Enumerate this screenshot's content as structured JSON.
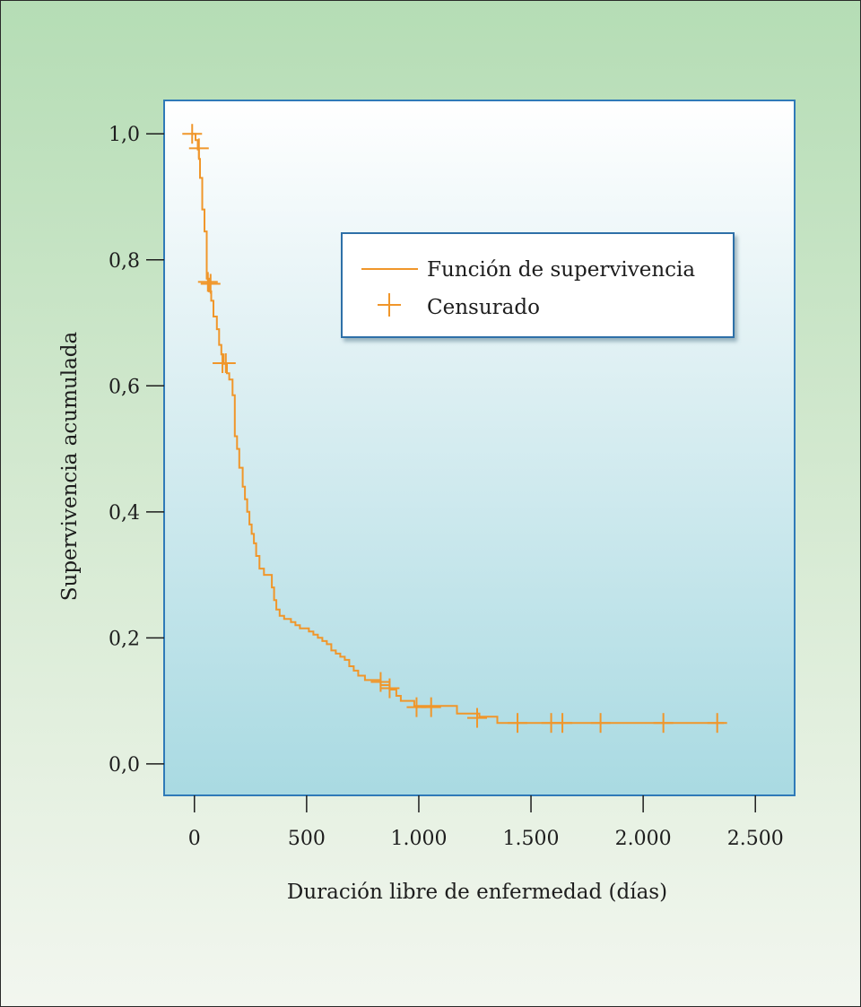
{
  "chart_data": {
    "type": "line",
    "xlabel": "Duración libre de enfermedad (días)",
    "ylabel": "Supervivencia acumulada",
    "xlim": [
      -135,
      2675
    ],
    "ylim": [
      -0.05,
      1.053
    ],
    "x_ticks": [
      0,
      500,
      1000,
      1500,
      2000,
      2500
    ],
    "x_tick_labels": [
      "0",
      "500",
      "1.000",
      "1.500",
      "2.000",
      "2.500"
    ],
    "y_ticks": [
      0,
      0.2,
      0.4,
      0.6,
      0.8,
      1.0
    ],
    "y_tick_labels": [
      "0,0",
      "0,2",
      "0,4",
      "0,6",
      "0,8",
      "1,0"
    ],
    "grid": false,
    "legend_position": "top-right",
    "colors": {
      "line": "#f0962a",
      "plot_border": "#2f7ab8",
      "legend_border": "#2f6fa8"
    },
    "series": [
      {
        "name": "Función de supervivencia",
        "style": "step",
        "points": [
          [
            -10,
            1.0
          ],
          [
            5,
            1.0
          ],
          [
            5,
            0.99
          ],
          [
            15,
            0.99
          ],
          [
            15,
            0.975
          ],
          [
            20,
            0.975
          ],
          [
            20,
            0.96
          ],
          [
            25,
            0.96
          ],
          [
            25,
            0.93
          ],
          [
            35,
            0.93
          ],
          [
            35,
            0.88
          ],
          [
            45,
            0.88
          ],
          [
            45,
            0.845
          ],
          [
            55,
            0.845
          ],
          [
            55,
            0.77
          ],
          [
            65,
            0.77
          ],
          [
            65,
            0.75
          ],
          [
            75,
            0.75
          ],
          [
            75,
            0.735
          ],
          [
            85,
            0.735
          ],
          [
            85,
            0.71
          ],
          [
            100,
            0.71
          ],
          [
            100,
            0.69
          ],
          [
            110,
            0.69
          ],
          [
            110,
            0.665
          ],
          [
            120,
            0.665
          ],
          [
            120,
            0.65
          ],
          [
            130,
            0.65
          ],
          [
            130,
            0.635
          ],
          [
            145,
            0.635
          ],
          [
            145,
            0.62
          ],
          [
            155,
            0.62
          ],
          [
            155,
            0.61
          ],
          [
            170,
            0.61
          ],
          [
            170,
            0.585
          ],
          [
            180,
            0.585
          ],
          [
            180,
            0.52
          ],
          [
            190,
            0.52
          ],
          [
            190,
            0.5
          ],
          [
            200,
            0.5
          ],
          [
            200,
            0.47
          ],
          [
            215,
            0.47
          ],
          [
            215,
            0.44
          ],
          [
            225,
            0.44
          ],
          [
            225,
            0.42
          ],
          [
            235,
            0.42
          ],
          [
            235,
            0.4
          ],
          [
            245,
            0.4
          ],
          [
            245,
            0.38
          ],
          [
            255,
            0.38
          ],
          [
            255,
            0.365
          ],
          [
            265,
            0.365
          ],
          [
            265,
            0.35
          ],
          [
            275,
            0.35
          ],
          [
            275,
            0.33
          ],
          [
            290,
            0.33
          ],
          [
            290,
            0.31
          ],
          [
            310,
            0.31
          ],
          [
            310,
            0.3
          ],
          [
            345,
            0.3
          ],
          [
            345,
            0.28
          ],
          [
            355,
            0.28
          ],
          [
            355,
            0.26
          ],
          [
            365,
            0.26
          ],
          [
            365,
            0.245
          ],
          [
            380,
            0.245
          ],
          [
            380,
            0.235
          ],
          [
            400,
            0.235
          ],
          [
            400,
            0.23
          ],
          [
            430,
            0.23
          ],
          [
            430,
            0.225
          ],
          [
            450,
            0.225
          ],
          [
            450,
            0.22
          ],
          [
            470,
            0.22
          ],
          [
            470,
            0.215
          ],
          [
            510,
            0.215
          ],
          [
            510,
            0.21
          ],
          [
            530,
            0.21
          ],
          [
            530,
            0.205
          ],
          [
            550,
            0.205
          ],
          [
            550,
            0.2
          ],
          [
            570,
            0.2
          ],
          [
            570,
            0.195
          ],
          [
            590,
            0.195
          ],
          [
            590,
            0.19
          ],
          [
            610,
            0.19
          ],
          [
            610,
            0.18
          ],
          [
            630,
            0.18
          ],
          [
            630,
            0.175
          ],
          [
            650,
            0.175
          ],
          [
            650,
            0.17
          ],
          [
            670,
            0.17
          ],
          [
            670,
            0.165
          ],
          [
            690,
            0.165
          ],
          [
            690,
            0.155
          ],
          [
            710,
            0.155
          ],
          [
            710,
            0.148
          ],
          [
            730,
            0.148
          ],
          [
            730,
            0.14
          ],
          [
            760,
            0.14
          ],
          [
            760,
            0.133
          ],
          [
            830,
            0.133
          ],
          [
            830,
            0.125
          ],
          [
            870,
            0.125
          ],
          [
            870,
            0.118
          ],
          [
            900,
            0.118
          ],
          [
            900,
            0.108
          ],
          [
            920,
            0.108
          ],
          [
            920,
            0.1
          ],
          [
            980,
            0.1
          ],
          [
            980,
            0.092
          ],
          [
            1170,
            0.092
          ],
          [
            1170,
            0.08
          ],
          [
            1270,
            0.08
          ],
          [
            1270,
            0.075
          ],
          [
            1350,
            0.075
          ],
          [
            1350,
            0.065
          ],
          [
            2360,
            0.065
          ]
        ]
      },
      {
        "name": "Censurado",
        "style": "marker-plus",
        "points": [
          [
            -10,
            1.0
          ],
          [
            20,
            0.977
          ],
          [
            60,
            0.765
          ],
          [
            72,
            0.762
          ],
          [
            125,
            0.636
          ],
          [
            140,
            0.636
          ],
          [
            830,
            0.13
          ],
          [
            870,
            0.12
          ],
          [
            990,
            0.09
          ],
          [
            1055,
            0.09
          ],
          [
            1260,
            0.073
          ],
          [
            1440,
            0.065
          ],
          [
            1590,
            0.065
          ],
          [
            1640,
            0.065
          ],
          [
            1810,
            0.065
          ],
          [
            2090,
            0.065
          ],
          [
            2330,
            0.065
          ]
        ]
      }
    ]
  }
}
